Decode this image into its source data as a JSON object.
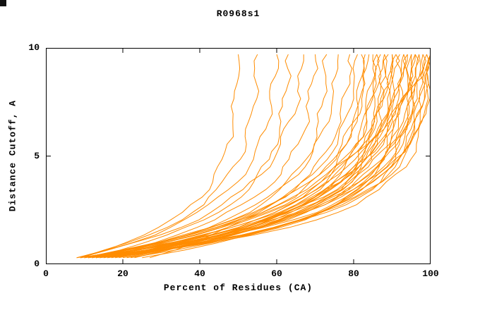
{
  "title": "R0968s1",
  "chart_data": {
    "type": "line",
    "title": "R0968s1",
    "xlabel": "Percent of Residues (CA)",
    "ylabel": "Distance Cutoff, A",
    "xlim": [
      0,
      100
    ],
    "ylim": [
      0,
      10
    ],
    "x_ticks": [
      0,
      20,
      40,
      60,
      80,
      100
    ],
    "y_ticks": [
      0,
      5,
      10
    ],
    "grid": false,
    "legend": "none",
    "line_color": "#ff8c00",
    "axis_color": "#000000",
    "background": "#ffffff",
    "curve_y_start": 0.3,
    "curve_y_end": 9.7,
    "series_model": "x(y) = x0 + (x1 - x0) * (1 - exp(-k*(y - 0.3))) / (1 - exp(-k*(9.7 - 0.3))); x0 = percent where curve starts at cutoff 0.3 A, x1 = percent reached at cutoff 9.7 A",
    "series_count": 44,
    "series": [
      {
        "x0": 8,
        "x1": 50,
        "k": 0.5
      },
      {
        "x0": 9,
        "x1": 55,
        "k": 0.46
      },
      {
        "x0": 8,
        "x1": 60,
        "k": 0.44
      },
      {
        "x0": 10,
        "x1": 63,
        "k": 0.5
      },
      {
        "x0": 9,
        "x1": 67,
        "k": 0.4
      },
      {
        "x0": 11,
        "x1": 70,
        "k": 0.46
      },
      {
        "x0": 10,
        "x1": 73,
        "k": 0.52
      },
      {
        "x0": 12,
        "x1": 76,
        "k": 0.44
      },
      {
        "x0": 9,
        "x1": 79,
        "k": 0.48
      },
      {
        "x0": 10,
        "x1": 81,
        "k": 0.45
      },
      {
        "x0": 11,
        "x1": 82,
        "k": 0.55
      },
      {
        "x0": 9,
        "x1": 83,
        "k": 0.47
      },
      {
        "x0": 12,
        "x1": 84,
        "k": 0.42
      },
      {
        "x0": 10,
        "x1": 85,
        "k": 0.55
      },
      {
        "x0": 13,
        "x1": 86,
        "k": 0.46
      },
      {
        "x0": 8,
        "x1": 86,
        "k": 0.6
      },
      {
        "x0": 11,
        "x1": 87,
        "k": 0.43
      },
      {
        "x0": 9,
        "x1": 88,
        "k": 0.52
      },
      {
        "x0": 14,
        "x1": 88,
        "k": 0.58
      },
      {
        "x0": 12,
        "x1": 89,
        "k": 0.45
      },
      {
        "x0": 10,
        "x1": 90,
        "k": 0.55
      },
      {
        "x0": 15,
        "x1": 90,
        "k": 0.4
      },
      {
        "x0": 11,
        "x1": 91,
        "k": 0.48
      },
      {
        "x0": 21,
        "x1": 91,
        "k": 0.43
      },
      {
        "x0": 13,
        "x1": 92,
        "k": 0.5
      },
      {
        "x0": 9,
        "x1": 93,
        "k": 0.56
      },
      {
        "x0": 16,
        "x1": 93,
        "k": 0.44
      },
      {
        "x0": 12,
        "x1": 94,
        "k": 0.52
      },
      {
        "x0": 19,
        "x1": 94,
        "k": 0.38
      },
      {
        "x0": 10,
        "x1": 95,
        "k": 0.47
      },
      {
        "x0": 17,
        "x1": 95,
        "k": 0.55
      },
      {
        "x0": 13,
        "x1": 96,
        "k": 0.5
      },
      {
        "x0": 23,
        "x1": 96,
        "k": 0.34
      },
      {
        "x0": 11,
        "x1": 96,
        "k": 0.58
      },
      {
        "x0": 18,
        "x1": 97,
        "k": 0.46
      },
      {
        "x0": 12,
        "x1": 97,
        "k": 0.53
      },
      {
        "x0": 20,
        "x1": 98,
        "k": 0.42
      },
      {
        "x0": 14,
        "x1": 98,
        "k": 0.57
      },
      {
        "x0": 22,
        "x1": 99,
        "k": 0.48
      },
      {
        "x0": 13,
        "x1": 99,
        "k": 0.55
      },
      {
        "x0": 25,
        "x1": 100,
        "k": 0.44
      },
      {
        "x0": 15,
        "x1": 100,
        "k": 0.52
      },
      {
        "x0": 27,
        "x1": 100,
        "k": 0.2
      },
      {
        "x0": 16,
        "x1": 100,
        "k": 0.58
      }
    ]
  }
}
